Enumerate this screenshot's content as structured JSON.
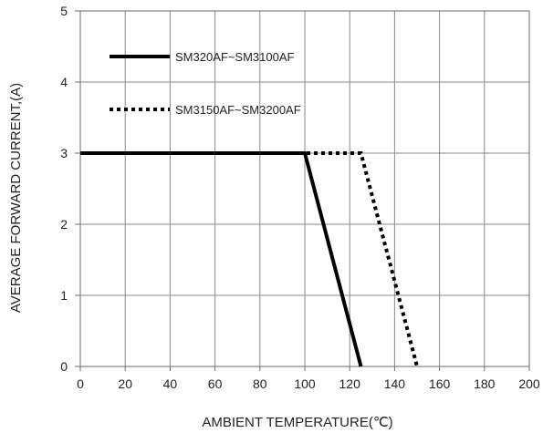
{
  "chart_data": {
    "type": "line",
    "xlabel": "AMBIENT TEMPERATURE(℃)",
    "ylabel": "AVERAGE FORWARD CURRENT,(A)",
    "xlim": [
      0,
      200
    ],
    "ylim": [
      0,
      5
    ],
    "x_ticks": [
      0,
      20,
      40,
      60,
      80,
      100,
      120,
      140,
      160,
      180,
      200
    ],
    "y_ticks": [
      0,
      1,
      2,
      3,
      4,
      5
    ],
    "grid": true,
    "legend_position": "top-left",
    "series": [
      {
        "name": "SM320AF~SM3100AF",
        "style": "solid",
        "color": "#000000",
        "points": [
          [
            0,
            3
          ],
          [
            100,
            3
          ],
          [
            125,
            0
          ]
        ]
      },
      {
        "name": "SM3150AF~SM3200AF",
        "style": "dotted",
        "color": "#000000",
        "points": [
          [
            0,
            3
          ],
          [
            125,
            3
          ],
          [
            150,
            0
          ]
        ]
      }
    ]
  }
}
